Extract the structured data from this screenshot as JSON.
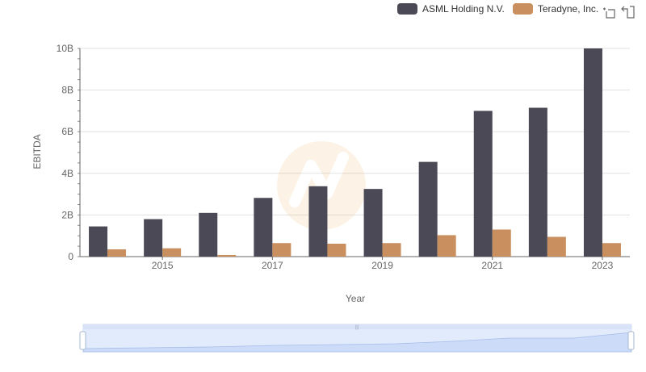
{
  "legend": {
    "items": [
      {
        "label": "ASML Holding N.V.",
        "color": "#4a4955"
      },
      {
        "label": "Teradyne, Inc.",
        "color": "#c98f5e"
      }
    ]
  },
  "toolbox": {
    "icons": [
      "zoom-icon",
      "restore-icon"
    ]
  },
  "chart_data": {
    "type": "bar",
    "categories": [
      "2014",
      "2015",
      "2016",
      "2017",
      "2018",
      "2019",
      "2020",
      "2021",
      "2022",
      "2023"
    ],
    "xtick_labels": [
      "2015",
      "2017",
      "2019",
      "2021",
      "2023"
    ],
    "ytick_labels": [
      "0",
      "2B",
      "4B",
      "6B",
      "8B",
      "10B"
    ],
    "series": [
      {
        "name": "ASML Holding N.V.",
        "color": "#4a4955",
        "values": [
          1.45,
          1.8,
          2.1,
          2.82,
          3.38,
          3.25,
          4.55,
          7.0,
          7.15,
          10.0
        ]
      },
      {
        "name": "Teradyne, Inc.",
        "color": "#c98f5e",
        "values": [
          0.35,
          0.4,
          0.08,
          0.65,
          0.62,
          0.65,
          1.03,
          1.3,
          0.95,
          0.65
        ]
      }
    ],
    "unit": "billions",
    "xlabel": "Year",
    "ylabel": "EBITDA",
    "ylim": [
      0,
      10
    ],
    "grid": true,
    "legend_position": "top-right",
    "datazoom": true
  }
}
